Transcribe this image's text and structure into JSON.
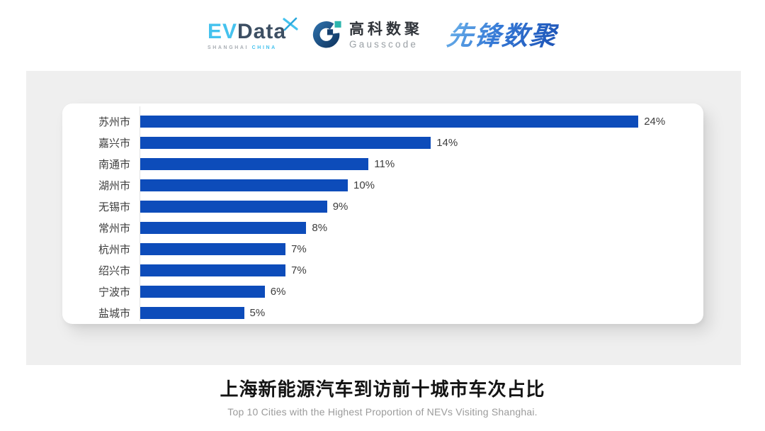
{
  "header": {
    "evdata": {
      "ev": "EV",
      "data": "Data",
      "sub_shanghai": "SHANGHAI",
      "sub_china": "CHINA"
    },
    "gausscode": {
      "cn": "高科数聚",
      "en": "Gausscode"
    },
    "pioneer": {
      "text": "先锋数聚"
    }
  },
  "chart_data": {
    "type": "bar",
    "orientation": "horizontal",
    "title": "上海新能源汽车到访前十城市车次占比",
    "subtitle": "Top 10 Cities with the Highest Proportion of  NEVs Visiting Shanghai.",
    "categories": [
      "苏州市",
      "嘉兴市",
      "南通市",
      "湖州市",
      "无锡市",
      "常州市",
      "杭州市",
      "绍兴市",
      "宁波市",
      "盐城市"
    ],
    "values": [
      24,
      14,
      11,
      10,
      9,
      8,
      7,
      7,
      6,
      5
    ],
    "value_suffix": "%",
    "xlim": [
      0,
      26
    ],
    "grid": false,
    "legend": "none",
    "bar_color": "#0d4cba"
  },
  "footer": {
    "title": "上海新能源汽车到访前十城市车次占比",
    "subtitle": "Top 10 Cities with the Highest Proportion of  NEVs Visiting Shanghai."
  },
  "colors": {
    "bar": "#0d4cba",
    "panel_bg": "#efefef",
    "card_bg": "#ffffff",
    "axis_line": "#e2e2e2",
    "label_text": "#3d3d3d",
    "evdata_light_blue": "#45c2ee",
    "evdata_dark": "#3d4f63",
    "gauss_navy": "#1d4e7e",
    "gauss_teal": "#2cb5ad",
    "pioneer_blue": "#2e6fce",
    "title_text": "#141414",
    "subtitle_text": "#9b9b9b"
  }
}
